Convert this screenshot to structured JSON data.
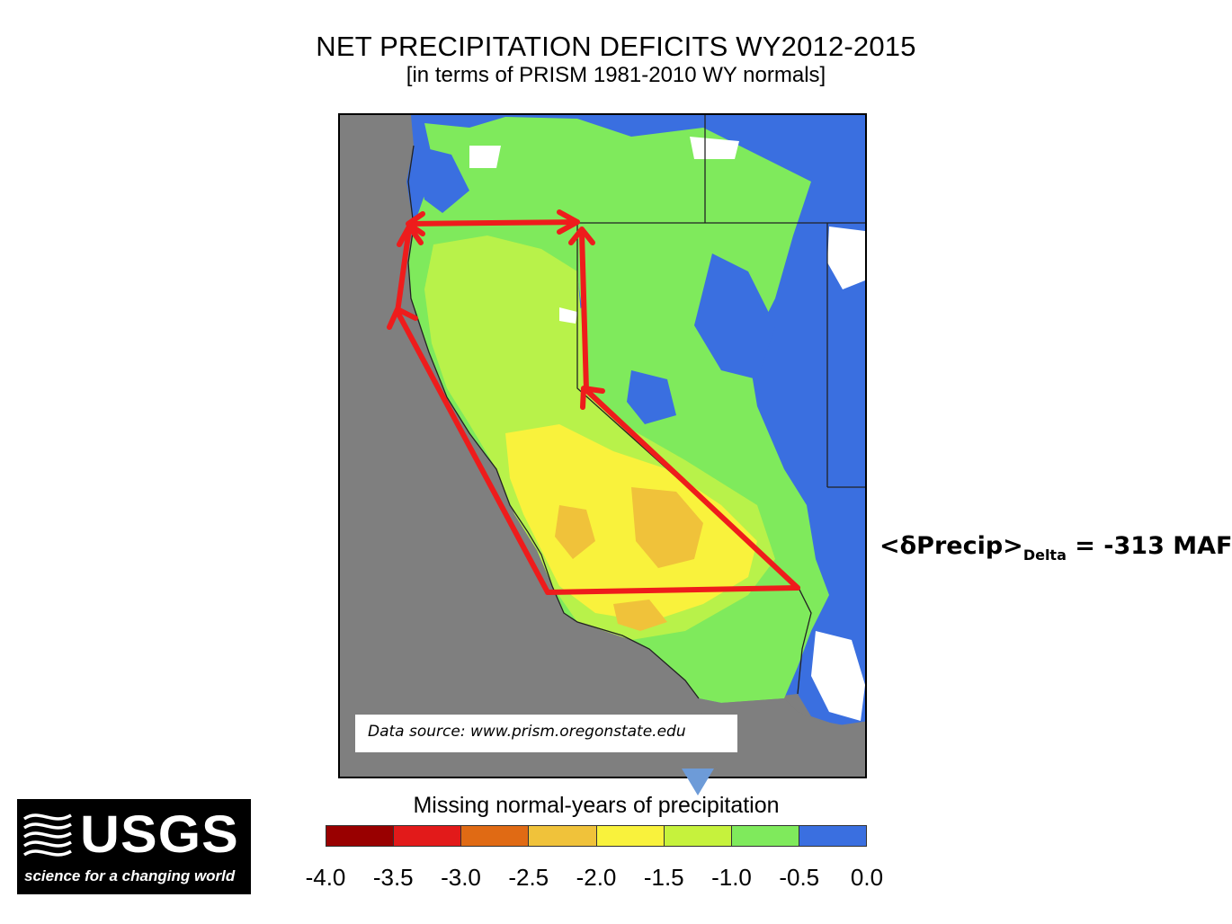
{
  "title": "NET PRECIPITATION DEFICITS WY2012-2015",
  "subtitle": "[in terms of PRISM 1981-2010 WY normals]",
  "source": "Data source: www.prism.oregonstate.edu",
  "annotation": {
    "prefix": "<δPrecip>",
    "subscript": "Delta",
    "suffix": " = -313 MAF"
  },
  "legend": {
    "title": "Missing normal-years of precipitation",
    "ticks": [
      "-4.0",
      "-3.5",
      "-3.0",
      "-2.5",
      "-2.0",
      "-1.5",
      "-1.0",
      "-0.5",
      "0.0"
    ],
    "colors": [
      "#990000",
      "#e21a1a",
      "#e06a14",
      "#f0c23a",
      "#f9f23c",
      "#c6f23c",
      "#7fea5c",
      "#3a6fe0"
    ],
    "bins": [
      {
        "min": -4.0,
        "max": -3.5
      },
      {
        "min": -3.5,
        "max": -3.0
      },
      {
        "min": -3.0,
        "max": -2.5
      },
      {
        "min": -2.5,
        "max": -2.0
      },
      {
        "min": -2.0,
        "max": -1.5
      },
      {
        "min": -1.5,
        "max": -1.0
      },
      {
        "min": -1.0,
        "max": -0.5
      },
      {
        "min": -0.5,
        "max": 0.0
      }
    ]
  },
  "map_colors": {
    "ocean": "#7f7f7f",
    "blue": "#3a6fe0",
    "green": "#7fea5c",
    "lightgreen": "#b8f24a",
    "yellow": "#f9f23c",
    "orange": "#f0c23a",
    "white": "#ffffff",
    "boundary": "#222222",
    "arrow": "#ee1c1c"
  },
  "logo": {
    "text": "USGS",
    "tagline": "science for a changing world"
  }
}
